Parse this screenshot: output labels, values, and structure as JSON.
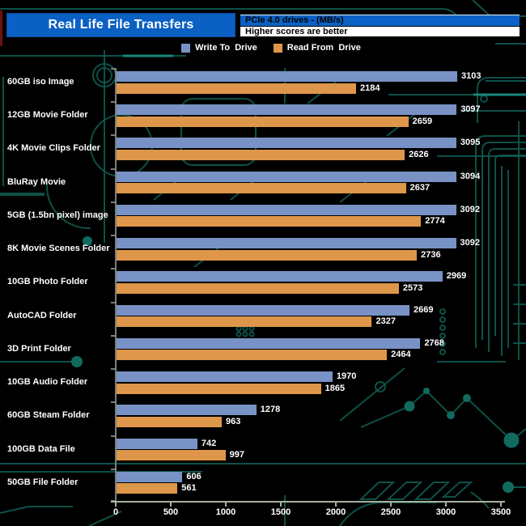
{
  "header": {
    "title": "Real Life File Transfers",
    "info_top": "PCIe 4.0 drives - (MB/s)",
    "info_bottom": "Higher scores are better"
  },
  "legend": {
    "items": [
      {
        "label": "Write To  Drive",
        "color": "#7892C6"
      },
      {
        "label": "Read From  Drive",
        "color": "#DE964A"
      }
    ]
  },
  "colors": {
    "background": "#000000",
    "title_bar_blue": "#0B60C4",
    "info_bar_blue": "#0A62C6",
    "write_bar": "#7892C6",
    "read_bar": "#DE964A",
    "x_axis": "#A7B29F",
    "y_axis": "#7A807A",
    "text": "#FFFFFF",
    "circuit_trace": "#0E5A50",
    "circuit_bright": "#17877A",
    "red_accent": "#6E1111"
  },
  "chart_data": {
    "type": "bar",
    "orientation": "horizontal",
    "title": "Real Life File Transfers",
    "subtitle": "PCIe 4.0 drives - (MB/s)",
    "note": "Higher scores are better",
    "categories": [
      "60GB iso Image",
      "12GB Movie Folder",
      "4K Movie Clips Folder",
      "BluRay Movie",
      "5GB (1.5bn pixel) image",
      "8K Movie Scenes Folder",
      "10GB Photo Folder",
      "AutoCAD Folder",
      "3D Print Folder",
      "10GB Audio Folder",
      "60GB Steam Folder",
      "100GB Data File",
      "50GB File Folder"
    ],
    "series": [
      {
        "name": "Write To  Drive",
        "color": "#7892C6",
        "values": [
          3103,
          3097,
          3095,
          3094,
          3092,
          3092,
          2969,
          2669,
          2768,
          1970,
          1278,
          742,
          606
        ]
      },
      {
        "name": "Read From  Drive",
        "color": "#DE964A",
        "values": [
          2184,
          2659,
          2626,
          2637,
          2774,
          2736,
          2573,
          2327,
          2464,
          1865,
          963,
          997,
          561
        ]
      }
    ],
    "xlim": [
      0,
      3500
    ],
    "x_ticks": [
      0,
      500,
      1000,
      1500,
      2000,
      2500,
      3000,
      3500
    ],
    "value_labels": true,
    "grid": false,
    "legend_position": "top"
  }
}
